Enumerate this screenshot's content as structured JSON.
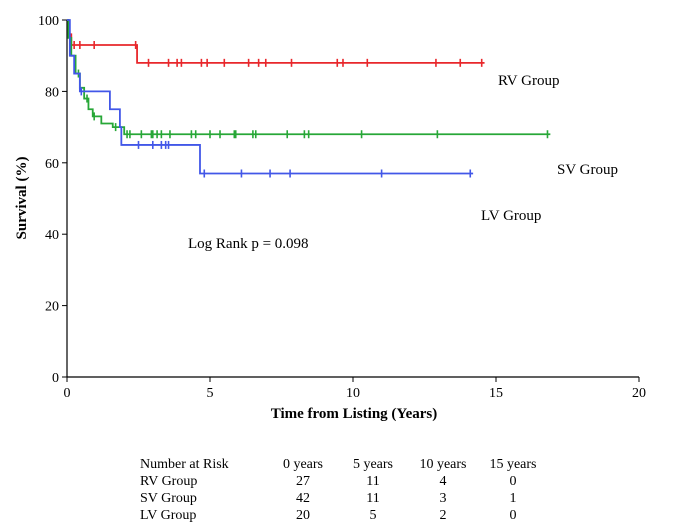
{
  "chart_data": {
    "type": "line",
    "title": "",
    "xlabel": "Time from Listing (Years)",
    "ylabel": "Survival (%)",
    "xlim": [
      0,
      20
    ],
    "ylim": [
      0,
      100
    ],
    "x_ticks": [
      "0",
      "5",
      "10",
      "15",
      "20"
    ],
    "y_ticks": [
      "0",
      "20",
      "40",
      "60",
      "80",
      "100"
    ],
    "grid": false,
    "annotation": "Log Rank p = 0.098",
    "series": [
      {
        "name": "RV Group",
        "color": "#e8272b",
        "steps": [
          [
            0,
            100
          ],
          [
            0.05,
            96
          ],
          [
            0.15,
            93
          ],
          [
            2.45,
            93
          ],
          [
            2.45,
            88
          ],
          [
            14.6,
            88
          ]
        ],
        "censors": [
          0.25,
          0.45,
          0.95,
          2.4,
          2.85,
          3.55,
          3.85,
          4.0,
          4.7,
          4.9,
          5.5,
          6.35,
          6.7,
          6.95,
          7.85,
          9.45,
          9.65,
          10.5,
          12.9,
          13.75,
          14.5
        ]
      },
      {
        "name": "SV Group",
        "color": "#27a737",
        "steps": [
          [
            0,
            100
          ],
          [
            0.05,
            95
          ],
          [
            0.15,
            90
          ],
          [
            0.3,
            85
          ],
          [
            0.45,
            81
          ],
          [
            0.6,
            78
          ],
          [
            0.75,
            75
          ],
          [
            0.9,
            73
          ],
          [
            1.2,
            71
          ],
          [
            1.6,
            70
          ],
          [
            2.0,
            68
          ],
          [
            16.9,
            68
          ]
        ],
        "censors": [
          0.4,
          0.7,
          0.95,
          1.7,
          2.1,
          2.2,
          2.6,
          2.95,
          3.0,
          3.15,
          3.3,
          3.6,
          4.35,
          4.5,
          5.0,
          5.35,
          5.85,
          5.9,
          6.5,
          6.6,
          7.7,
          8.3,
          8.45,
          10.3,
          12.95,
          16.8
        ]
      },
      {
        "name": "LV Group",
        "color": "#4257e8",
        "steps": [
          [
            0,
            100
          ],
          [
            0.1,
            90
          ],
          [
            0.25,
            85
          ],
          [
            0.45,
            80
          ],
          [
            1.5,
            80
          ],
          [
            1.5,
            75
          ],
          [
            1.85,
            75
          ],
          [
            1.85,
            70
          ],
          [
            1.9,
            70
          ],
          [
            1.9,
            65
          ],
          [
            4.65,
            65
          ],
          [
            4.65,
            57
          ],
          [
            14.2,
            57
          ]
        ],
        "censors": [
          0.5,
          2.5,
          3.0,
          3.3,
          3.45,
          3.55,
          4.8,
          6.1,
          7.1,
          7.8,
          11.0,
          14.1
        ]
      }
    ]
  },
  "risk_table": {
    "header": [
      "Number at Risk",
      "0 years",
      "5 years",
      "10 years",
      "15 years"
    ],
    "rows": [
      {
        "label": "RV Group",
        "values": [
          "27",
          "11",
          "4",
          "0"
        ]
      },
      {
        "label": "SV Group",
        "values": [
          "42",
          "11",
          "3",
          "1"
        ]
      },
      {
        "label": "LV Group",
        "values": [
          "20",
          "5",
          "2",
          "0"
        ]
      }
    ]
  }
}
